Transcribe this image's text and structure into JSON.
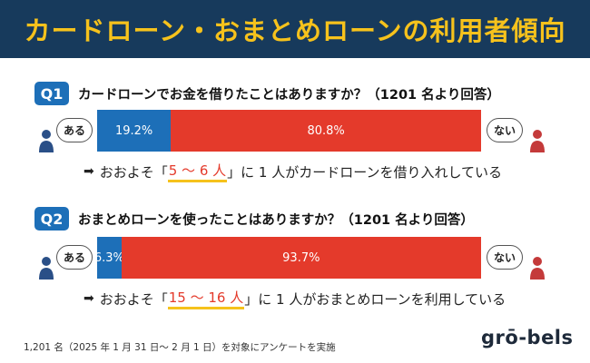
{
  "header": {
    "title": "カードローン・おまとめローンの利用者傾向"
  },
  "labels": {
    "yes": "ある",
    "no": "ない"
  },
  "questions": [
    {
      "badge": "Q1",
      "text": "カードローンでお金を借りたことはありますか？（1201 名より回答）",
      "yes_pct_label": "19.2%",
      "no_pct_label": "80.8%",
      "result_prefix": "おおよそ「",
      "result_highlight": "5 ～ 6 人",
      "result_suffix": "」に 1 人がカードローンを借り入れしている"
    },
    {
      "badge": "Q2",
      "text": "おまとめローンを使ったことはありますか？（1201 名より回答）",
      "yes_pct_label": "6.3%",
      "no_pct_label": "93.7%",
      "result_prefix": "おおよそ「",
      "result_highlight": "15 ～ 16 人",
      "result_suffix": "」に 1 人がおまとめローンを利用している"
    }
  ],
  "footnote": "1,201 名（2025 年 1 月 31 日～ 2 月 1 日）を対象にアンケートを実施",
  "logo": "grō-bels",
  "colors": {
    "navy": "#173a5c",
    "blue": "#1d6fb8",
    "red": "#e43a2b",
    "yellow": "#f6c21c"
  },
  "icons": {
    "person": "person-icon",
    "arrow": "arrow-right-icon"
  },
  "chart_data": [
    {
      "type": "bar",
      "stacked": true,
      "categories": [
        "カードローンでお金を借りたことはありますか？（1201 名より回答）"
      ],
      "series": [
        {
          "name": "ある",
          "values": [
            19.2
          ]
        },
        {
          "name": "ない",
          "values": [
            80.8
          ]
        }
      ]
    },
    {
      "type": "bar",
      "stacked": true,
      "categories": [
        "おまとめローンを使ったことはありますか？（1201 名より回答）"
      ],
      "series": [
        {
          "name": "ある",
          "values": [
            6.3
          ]
        },
        {
          "name": "ない",
          "values": [
            93.7
          ]
        }
      ]
    }
  ]
}
